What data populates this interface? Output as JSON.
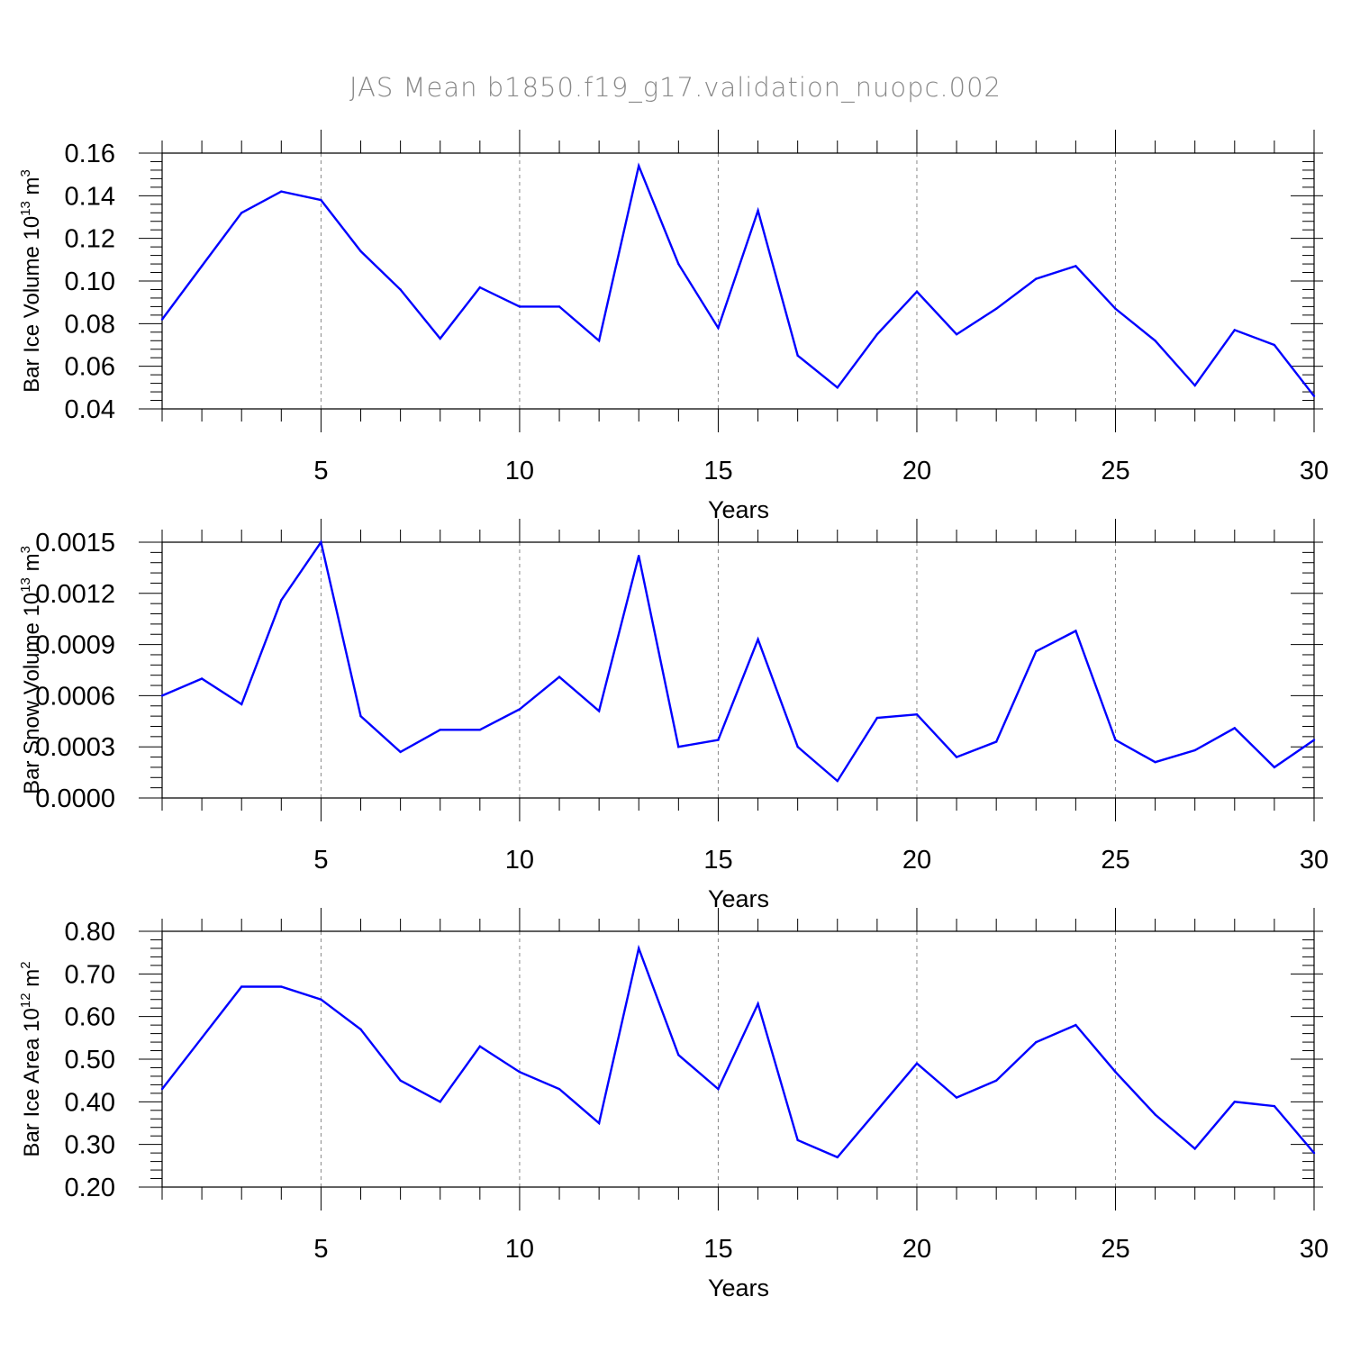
{
  "title": "JAS Mean b1850.f19_g17.validation_nuopc.002",
  "colors": {
    "series": "#0000ff",
    "axes": "#000000",
    "grid": "#888888",
    "title": "#888888"
  },
  "chart_data": [
    {
      "type": "line",
      "title": "JAS Mean b1850.f19_g17.validation_nuopc.002",
      "xlabel": "Years",
      "ylabel": {
        "base": "Bar Ice Volume 10",
        "exp": "13",
        "unit": " m",
        "unit_exp": "3"
      },
      "xlim": [
        1,
        30
      ],
      "ylim": [
        0.04,
        0.16
      ],
      "yticks": [
        "0.04",
        "0.06",
        "0.08",
        "0.10",
        "0.12",
        "0.14",
        "0.16"
      ],
      "xticks": [
        "5",
        "10",
        "15",
        "20",
        "25",
        "30"
      ],
      "grid": "vertical dashed at major x ticks",
      "x": [
        1,
        2,
        3,
        4,
        5,
        6,
        7,
        8,
        9,
        10,
        11,
        12,
        13,
        14,
        15,
        16,
        17,
        18,
        19,
        20,
        21,
        22,
        23,
        24,
        25,
        26,
        27,
        28,
        29,
        30
      ],
      "values": [
        0.082,
        0.107,
        0.132,
        0.142,
        0.138,
        0.114,
        0.096,
        0.073,
        0.097,
        0.088,
        0.088,
        0.072,
        0.154,
        0.108,
        0.078,
        0.133,
        0.065,
        0.05,
        0.075,
        0.095,
        0.075,
        0.087,
        0.101,
        0.107,
        0.087,
        0.072,
        0.051,
        0.077,
        0.07,
        0.046
      ]
    },
    {
      "type": "line",
      "xlabel": "Years",
      "ylabel": {
        "base": "Bar Snow Volume 10",
        "exp": "13",
        "unit": " m",
        "unit_exp": "3"
      },
      "xlim": [
        1,
        30
      ],
      "ylim": [
        0.0,
        0.0015
      ],
      "yticks": [
        "0.0000",
        "0.0003",
        "0.0006",
        "0.0009",
        "0.0012",
        "0.0015"
      ],
      "xticks": [
        "5",
        "10",
        "15",
        "20",
        "25",
        "30"
      ],
      "grid": "vertical dashed at major x ticks",
      "x": [
        1,
        2,
        3,
        4,
        5,
        6,
        7,
        8,
        9,
        10,
        11,
        12,
        13,
        14,
        15,
        16,
        17,
        18,
        19,
        20,
        21,
        22,
        23,
        24,
        25,
        26,
        27,
        28,
        29,
        30
      ],
      "values": [
        0.0006,
        0.0007,
        0.00055,
        0.00116,
        0.0015,
        0.00048,
        0.00027,
        0.0004,
        0.0004,
        0.00052,
        0.00071,
        0.00051,
        0.00142,
        0.0003,
        0.00034,
        0.00093,
        0.0003,
        0.0001,
        0.00047,
        0.00049,
        0.00024,
        0.00033,
        0.00086,
        0.00098,
        0.00034,
        0.00021,
        0.00028,
        0.00041,
        0.00018,
        0.00034
      ]
    },
    {
      "type": "line",
      "xlabel": "Years",
      "ylabel": {
        "base": "Bar Ice Area 10",
        "exp": "12",
        "unit": " m",
        "unit_exp": "2"
      },
      "xlim": [
        1,
        30
      ],
      "ylim": [
        0.2,
        0.8
      ],
      "yticks": [
        "0.20",
        "0.30",
        "0.40",
        "0.50",
        "0.60",
        "0.70",
        "0.80"
      ],
      "xticks": [
        "5",
        "10",
        "15",
        "20",
        "25",
        "30"
      ],
      "grid": "vertical dashed at major x ticks",
      "x": [
        1,
        2,
        3,
        4,
        5,
        6,
        7,
        8,
        9,
        10,
        11,
        12,
        13,
        14,
        15,
        16,
        17,
        18,
        19,
        20,
        21,
        22,
        23,
        24,
        25,
        26,
        27,
        28,
        29,
        30
      ],
      "values": [
        0.43,
        0.55,
        0.67,
        0.67,
        0.64,
        0.57,
        0.45,
        0.4,
        0.53,
        0.47,
        0.43,
        0.35,
        0.76,
        0.51,
        0.43,
        0.63,
        0.31,
        0.27,
        0.38,
        0.49,
        0.41,
        0.45,
        0.54,
        0.58,
        0.47,
        0.37,
        0.29,
        0.4,
        0.39,
        0.28
      ]
    }
  ]
}
